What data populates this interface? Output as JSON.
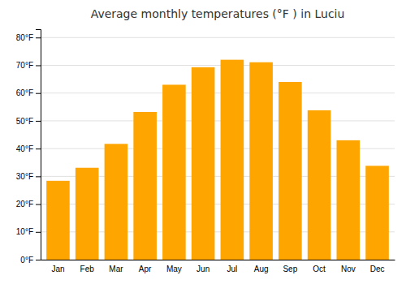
{
  "chart_data": {
    "type": "bar",
    "title": "Average monthly temperatures (°F ) in Luciu",
    "categories": [
      "Jan",
      "Feb",
      "Mar",
      "Apr",
      "May",
      "Jun",
      "Jul",
      "Aug",
      "Sep",
      "Oct",
      "Nov",
      "Dec"
    ],
    "values": [
      28.4,
      33.1,
      41.7,
      53.2,
      63.0,
      69.3,
      72.0,
      71.1,
      64.0,
      53.8,
      43.0,
      33.8
    ],
    "color": "#FFA500",
    "ylim": [
      0,
      83
    ],
    "yticks": [
      {
        "value": 0,
        "label": "0°F"
      },
      {
        "value": 10,
        "label": "10°F"
      },
      {
        "value": 20,
        "label": "20°F"
      },
      {
        "value": 30,
        "label": "30°F"
      },
      {
        "value": 40,
        "label": "40°F"
      },
      {
        "value": 50,
        "label": "50°F"
      },
      {
        "value": 60,
        "label": "60°F"
      },
      {
        "value": 70,
        "label": "70°F"
      },
      {
        "value": 80,
        "label": "80°F"
      }
    ],
    "grid": true
  }
}
